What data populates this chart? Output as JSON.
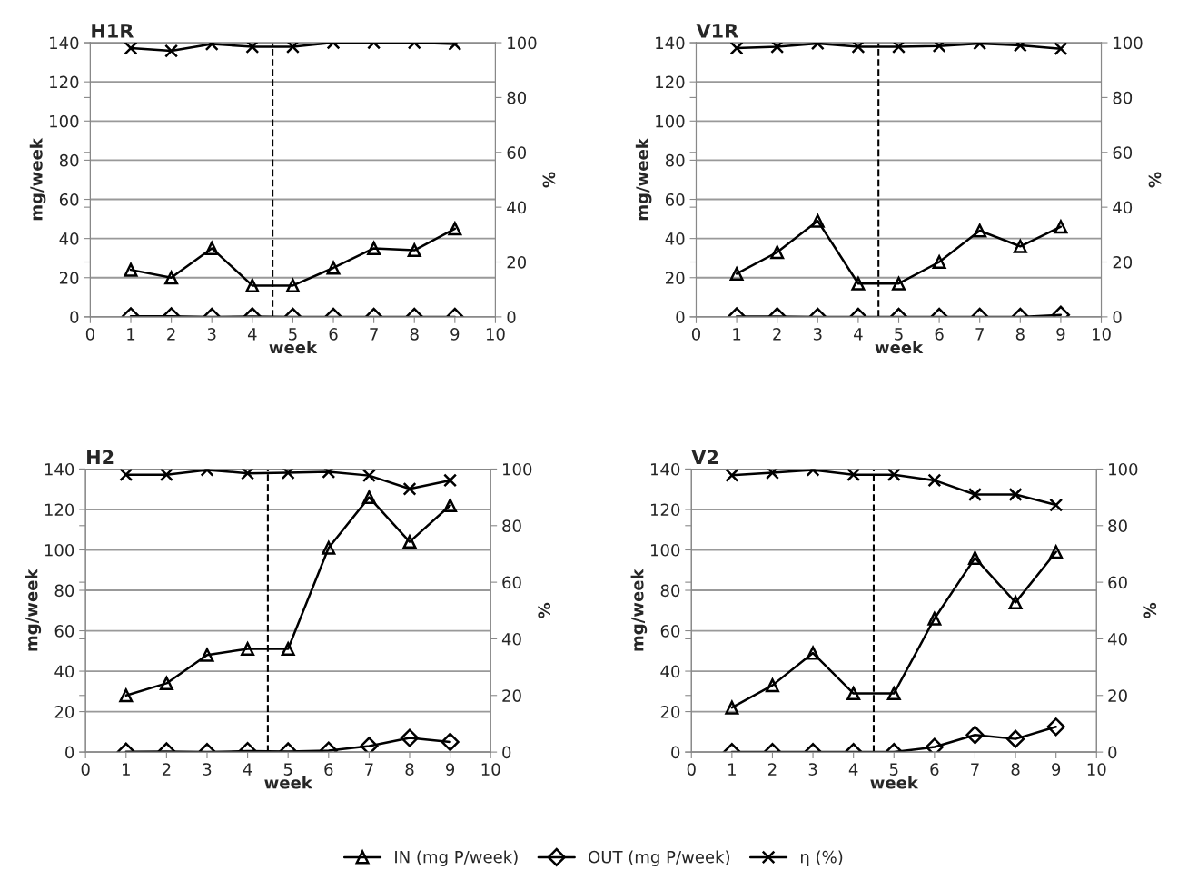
{
  "chart_data": [
    {
      "type": "line",
      "title": "H1R",
      "xlabel": "week",
      "ylabel": "mg/week",
      "y2label": "%",
      "x": [
        1,
        2,
        3,
        4,
        5,
        6,
        7,
        8,
        9
      ],
      "xlim": [
        0,
        10
      ],
      "xticks": [
        0,
        1,
        2,
        3,
        4,
        5,
        6,
        7,
        8,
        9,
        10
      ],
      "ylim": [
        0,
        140
      ],
      "yticks": [
        0,
        20,
        40,
        60,
        80,
        100,
        120,
        140
      ],
      "y2lim": [
        0,
        100
      ],
      "y2ticks": [
        0,
        20,
        40,
        60,
        80,
        100
      ],
      "grid": "y",
      "line_style": "solid",
      "legend": "bottom",
      "series": [
        {
          "name": "IN (mg P/week)",
          "color": "#000000",
          "marker": "triangle",
          "values": [
            24,
            20,
            35,
            16,
            16,
            25,
            35,
            34,
            45
          ]
        },
        {
          "name": "OUT (mg P/week)",
          "color": "#000000",
          "marker": "diamond",
          "values": [
            0.3,
            0.3,
            0,
            0.2,
            0,
            0,
            0,
            0,
            0
          ]
        },
        {
          "name": "η (%)",
          "color": "#000000",
          "marker": "cross",
          "axis": "y2",
          "values": [
            98,
            97,
            99.5,
            98.5,
            98.5,
            100,
            100,
            100,
            99.5
          ]
        }
      ],
      "ref_lines": [
        {
          "axis": "x",
          "value": 4.5,
          "color": "#000000",
          "line_style": "dashed"
        }
      ]
    },
    {
      "type": "line",
      "title": "V1R",
      "xlabel": "week",
      "ylabel": "mg/week",
      "y2label": "%",
      "x": [
        1,
        2,
        3,
        4,
        5,
        6,
        7,
        8,
        9
      ],
      "xlim": [
        0,
        10
      ],
      "xticks": [
        0,
        1,
        2,
        3,
        4,
        5,
        6,
        7,
        8,
        9,
        10
      ],
      "ylim": [
        0,
        140
      ],
      "yticks": [
        0,
        20,
        40,
        60,
        80,
        100,
        120,
        140
      ],
      "y2lim": [
        0,
        100
      ],
      "y2ticks": [
        0,
        20,
        40,
        60,
        80,
        100
      ],
      "grid": "y",
      "line_style": "solid",
      "series": [
        {
          "color": "#000000",
          "marker": "triangle",
          "values": [
            22,
            33,
            49,
            17,
            17,
            28,
            44,
            36,
            46
          ]
        },
        {
          "color": "#000000",
          "marker": "diamond",
          "values": [
            0.2,
            0.2,
            0,
            0,
            0,
            0,
            0,
            0,
            1
          ]
        },
        {
          "color": "#000000",
          "marker": "cross",
          "axis": "y2",
          "values": [
            98,
            98.5,
            99.7,
            98.5,
            98.5,
            98.8,
            99.7,
            99,
            97.8
          ]
        }
      ],
      "ref_lines": [
        {
          "axis": "x",
          "value": 4.5,
          "color": "#000000",
          "line_style": "dashed"
        }
      ]
    },
    {
      "type": "line",
      "title": "H2",
      "xlabel": "week",
      "ylabel": "mg/week",
      "y2label": "%",
      "x": [
        1,
        2,
        3,
        4,
        5,
        6,
        7,
        8,
        9
      ],
      "xlim": [
        0,
        10
      ],
      "xticks": [
        0,
        1,
        2,
        3,
        4,
        5,
        6,
        7,
        8,
        9,
        10
      ],
      "ylim": [
        0,
        140
      ],
      "yticks": [
        0,
        20,
        40,
        60,
        80,
        100,
        120,
        140
      ],
      "y2lim": [
        0,
        100
      ],
      "y2ticks": [
        0,
        20,
        40,
        60,
        80,
        100
      ],
      "grid": "y",
      "line_style": "solid",
      "series": [
        {
          "color": "#000000",
          "marker": "triangle",
          "values": [
            28,
            34,
            48,
            51,
            51,
            101,
            126,
            104,
            122
          ]
        },
        {
          "color": "#000000",
          "marker": "diamond",
          "values": [
            0.2,
            0.3,
            0,
            0.5,
            0.3,
            0.7,
            3,
            7,
            5
          ]
        },
        {
          "color": "#000000",
          "marker": "cross",
          "axis": "y2",
          "values": [
            98,
            98,
            99.7,
            98.5,
            98.7,
            99,
            97.7,
            93,
            96
          ]
        }
      ],
      "ref_lines": [
        {
          "axis": "x",
          "value": 4.5,
          "color": "#000000",
          "line_style": "dashed"
        }
      ]
    },
    {
      "type": "line",
      "title": "V2",
      "xlabel": "week",
      "ylabel": "mg/week",
      "y2label": "%",
      "x": [
        1,
        2,
        3,
        4,
        5,
        6,
        7,
        8,
        9
      ],
      "xlim": [
        0,
        10
      ],
      "xticks": [
        0,
        1,
        2,
        3,
        4,
        5,
        6,
        7,
        8,
        9,
        10
      ],
      "ylim": [
        0,
        140
      ],
      "yticks": [
        0,
        20,
        40,
        60,
        80,
        100,
        120,
        140
      ],
      "y2lim": [
        0,
        100
      ],
      "y2ticks": [
        0,
        20,
        40,
        60,
        80,
        100
      ],
      "grid": "y",
      "line_style": "solid",
      "series": [
        {
          "color": "#000000",
          "marker": "triangle",
          "values": [
            22,
            33,
            49,
            29,
            29,
            66,
            96,
            74,
            99
          ]
        },
        {
          "color": "#000000",
          "marker": "diamond",
          "values": [
            0,
            0,
            0,
            0,
            0,
            2.5,
            8.5,
            6.5,
            12.5
          ]
        },
        {
          "color": "#000000",
          "marker": "cross",
          "axis": "y2",
          "values": [
            97.8,
            98.7,
            99.7,
            98,
            98,
            96,
            91,
            91,
            87.3
          ]
        }
      ],
      "ref_lines": [
        {
          "axis": "x",
          "value": 4.5,
          "color": "#000000",
          "line_style": "dashed"
        }
      ]
    }
  ]
}
